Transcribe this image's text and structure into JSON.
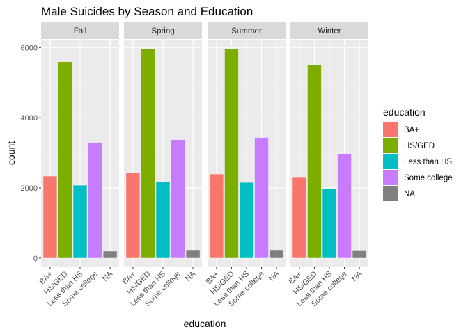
{
  "chart_data": {
    "type": "bar",
    "title": "Male Suicides by Season and Education",
    "xlabel": "education",
    "ylabel": "count",
    "ylim": [
      0,
      6500
    ],
    "yticks": [
      0,
      2000,
      4000,
      6000
    ],
    "grid": true,
    "facet_by": "season",
    "categories": [
      "BA+",
      "HS/GED",
      "Less than HS",
      "Some college",
      "NA"
    ],
    "colors": {
      "BA+": "#F8766D",
      "HS/GED": "#7CAE00",
      "Less than HS": "#00BFC4",
      "Some college": "#C77CFF",
      "NA": "#7F7F7F"
    },
    "facets": [
      {
        "name": "Fall",
        "values": [
          2330,
          5590,
          2070,
          3290,
          190
        ]
      },
      {
        "name": "Spring",
        "values": [
          2430,
          5950,
          2170,
          3370,
          210
        ]
      },
      {
        "name": "Summer",
        "values": [
          2390,
          5950,
          2150,
          3430,
          210
        ]
      },
      {
        "name": "Winter",
        "values": [
          2290,
          5490,
          1980,
          2970,
          200
        ]
      }
    ],
    "legend": {
      "title": "education",
      "placement": "right",
      "entries": [
        "BA+",
        "HS/GED",
        "Less than HS",
        "Some college",
        "NA"
      ]
    }
  }
}
